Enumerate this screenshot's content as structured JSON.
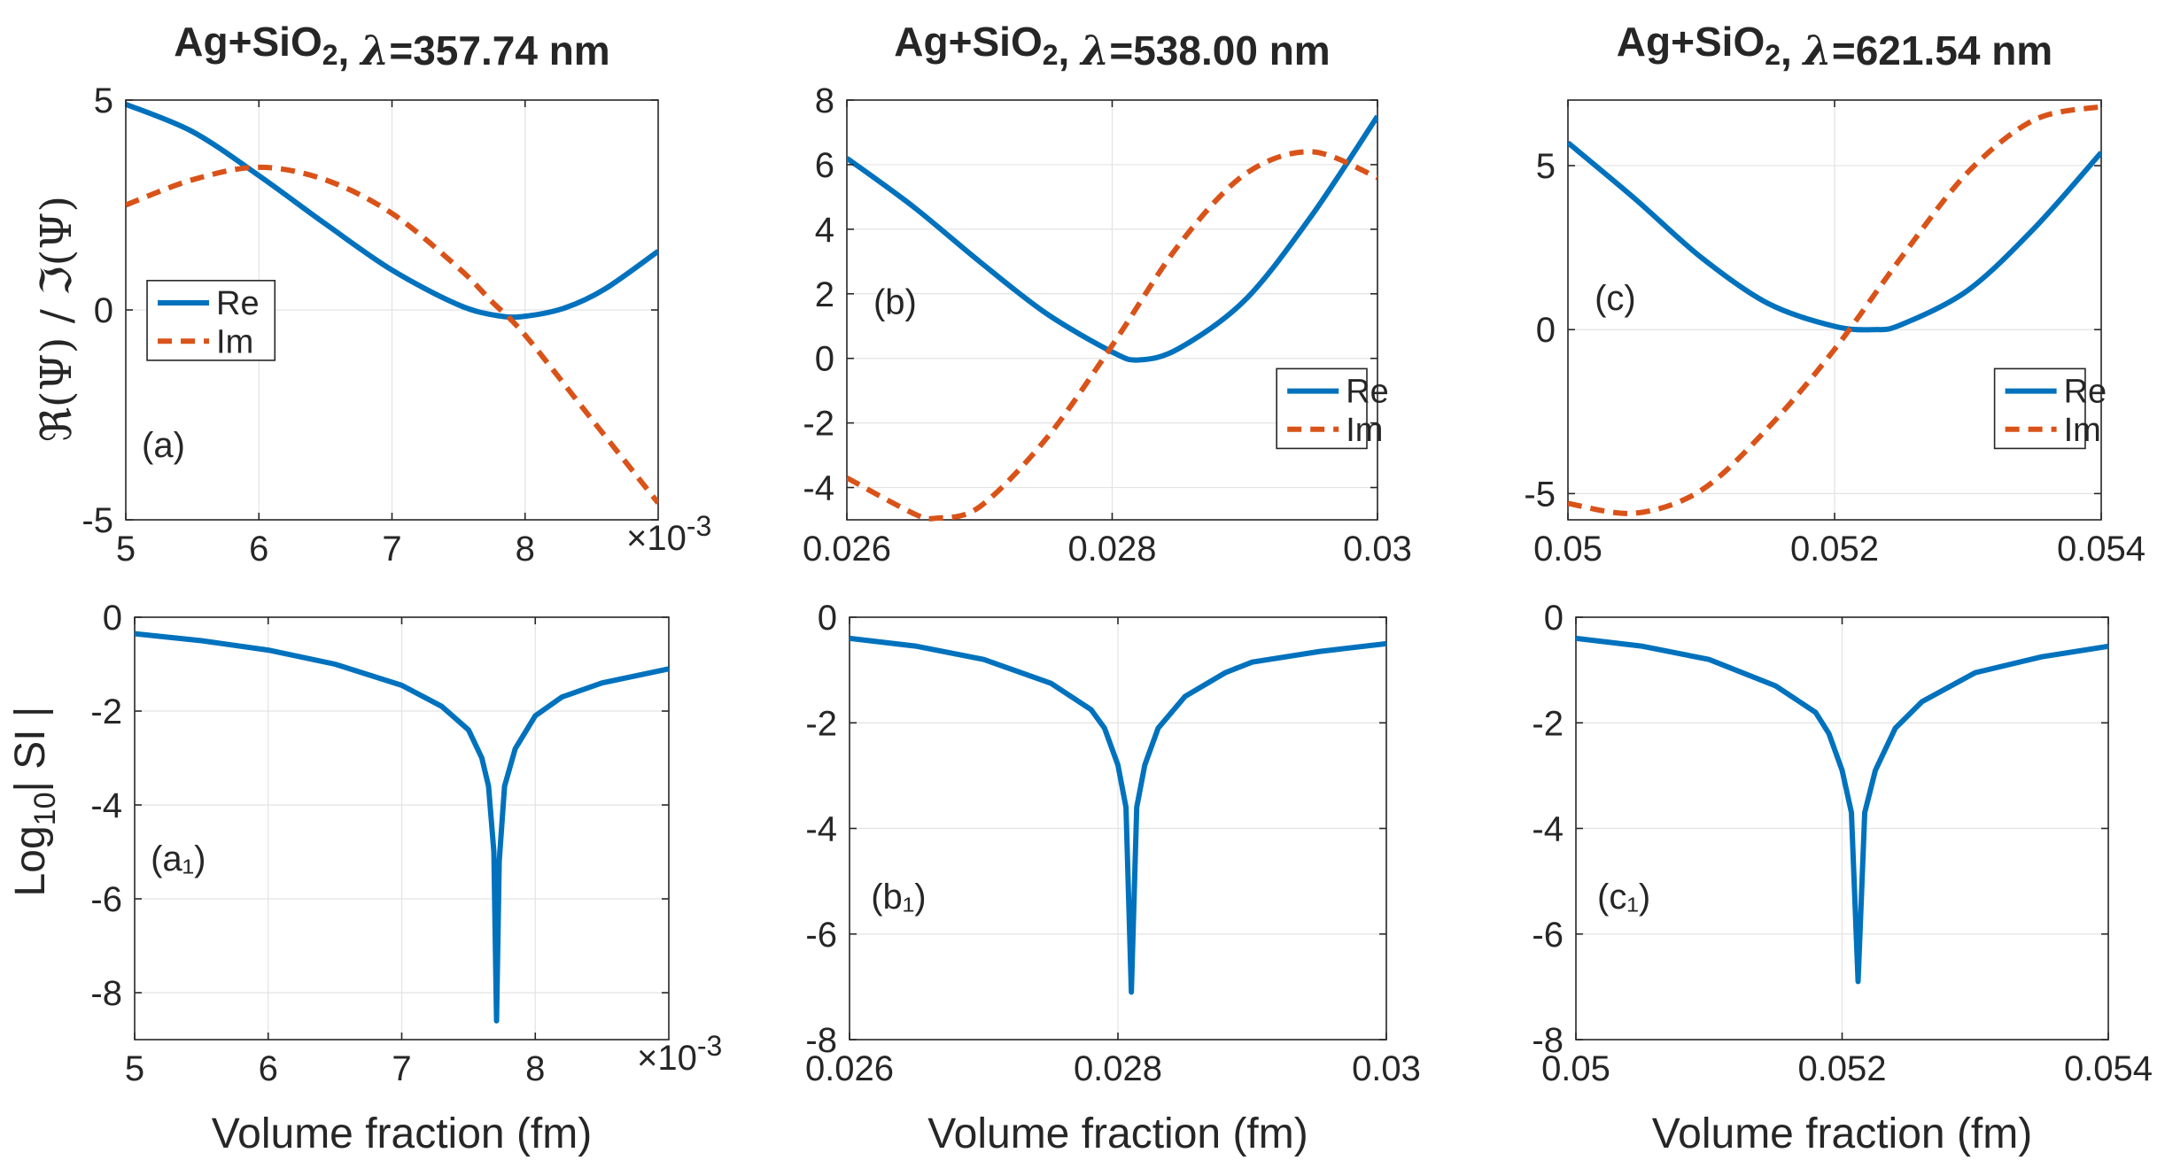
{
  "figure": {
    "ylabel_top": "ℜ(Ψ) / ℑ(Ψ)",
    "ylabel_bottom": "Log10| SI |"
  },
  "chart_data": [
    {
      "id": "a",
      "type": "line",
      "title": "Ag+SiO2, λ=357.74 nm",
      "tag": "(a)",
      "xlabel": "",
      "x_exponent": "×10-3",
      "xlim": [
        5,
        9
      ],
      "ylim": [
        -5,
        5
      ],
      "xticks": [
        5,
        6,
        7,
        8
      ],
      "xtick_labels": [
        "5",
        "6",
        "7",
        "8"
      ],
      "yticks": [
        -5,
        0,
        5
      ],
      "ytick_labels": [
        "-5",
        "0",
        "5"
      ],
      "grid": true,
      "legend": {
        "position": "middle-left",
        "entries": [
          "Re",
          "Im"
        ]
      },
      "colors": {
        "Re": "#0072BD",
        "Im": "#D95319"
      },
      "series": [
        {
          "name": "Re",
          "style": "solid",
          "x": [
            5.0,
            5.5,
            6.0,
            6.5,
            7.0,
            7.5,
            7.8,
            8.0,
            8.3,
            8.6,
            9.0
          ],
          "y": [
            4.9,
            4.25,
            3.2,
            2.05,
            0.95,
            0.12,
            -0.14,
            -0.15,
            0.05,
            0.5,
            1.4
          ]
        },
        {
          "name": "Im",
          "style": "dashed",
          "x": [
            5.0,
            5.5,
            6.0,
            6.5,
            7.0,
            7.5,
            7.75,
            8.0,
            8.5,
            9.0
          ],
          "y": [
            2.5,
            3.1,
            3.4,
            3.1,
            2.3,
            1.0,
            0.2,
            -0.6,
            -2.6,
            -4.6
          ]
        }
      ]
    },
    {
      "id": "b",
      "type": "line",
      "title": "Ag+SiO2, λ=538.00 nm",
      "tag": "(b)",
      "xlabel": "",
      "x_exponent": "",
      "xlim": [
        0.026,
        0.03
      ],
      "ylim": [
        -5,
        8
      ],
      "xticks": [
        0.026,
        0.028,
        0.03
      ],
      "xtick_labels": [
        "0.026",
        "0.028",
        "0.03"
      ],
      "yticks": [
        -4,
        -2,
        0,
        2,
        4,
        6,
        8
      ],
      "ytick_labels": [
        "-4",
        "-2",
        "0",
        "2",
        "4",
        "6",
        "8"
      ],
      "grid": true,
      "legend": {
        "position": "right",
        "entries": [
          "Re",
          "Im"
        ]
      },
      "colors": {
        "Re": "#0072BD",
        "Im": "#D95319"
      },
      "series": [
        {
          "name": "Re",
          "style": "solid",
          "x": [
            0.026,
            0.0265,
            0.027,
            0.0275,
            0.028,
            0.0282,
            0.0285,
            0.029,
            0.0295,
            0.03
          ],
          "y": [
            6.2,
            4.7,
            3.0,
            1.4,
            0.2,
            -0.05,
            0.3,
            1.8,
            4.4,
            7.5
          ]
        },
        {
          "name": "Im",
          "style": "dashed",
          "x": [
            0.026,
            0.0265,
            0.02667,
            0.027,
            0.0275,
            0.028,
            0.0285,
            0.029,
            0.0295,
            0.03
          ],
          "y": [
            -3.7,
            -4.8,
            -4.95,
            -4.6,
            -2.5,
            0.4,
            3.5,
            5.7,
            6.4,
            5.6
          ]
        }
      ]
    },
    {
      "id": "c",
      "type": "line",
      "title": "Ag+SiO2, λ=621.54 nm",
      "tag": "(c)",
      "xlabel": "",
      "x_exponent": "",
      "xlim": [
        0.05,
        0.054
      ],
      "ylim": [
        -5.8,
        7
      ],
      "xticks": [
        0.05,
        0.052,
        0.054
      ],
      "xtick_labels": [
        "0.05",
        "0.052",
        "0.054"
      ],
      "yticks": [
        -5,
        0,
        5
      ],
      "ytick_labels": [
        "-5",
        "0",
        "5"
      ],
      "grid": true,
      "legend": {
        "position": "right",
        "entries": [
          "Re",
          "Im"
        ]
      },
      "colors": {
        "Re": "#0072BD",
        "Im": "#D95319"
      },
      "series": [
        {
          "name": "Re",
          "style": "solid",
          "x": [
            0.05,
            0.0505,
            0.051,
            0.0515,
            0.052,
            0.0523,
            0.0525,
            0.053,
            0.0535,
            0.054
          ],
          "y": [
            5.7,
            4.0,
            2.2,
            0.8,
            0.1,
            0.0,
            0.15,
            1.2,
            3.1,
            5.4
          ]
        },
        {
          "name": "Im",
          "style": "dashed",
          "x": [
            0.05,
            0.0505,
            0.051,
            0.0515,
            0.052,
            0.0525,
            0.053,
            0.0535,
            0.054
          ],
          "y": [
            -5.3,
            -5.6,
            -4.9,
            -3.0,
            -0.6,
            2.2,
            4.8,
            6.4,
            6.8
          ]
        }
      ]
    },
    {
      "id": "a1",
      "type": "line",
      "title": "",
      "tag": "(a₁)",
      "xlabel": "Volume fraction (fm)",
      "x_exponent": "×10-3",
      "xlim": [
        5,
        9
      ],
      "ylim": [
        -9,
        0
      ],
      "xticks": [
        5,
        6,
        7,
        8
      ],
      "xtick_labels": [
        "5",
        "6",
        "7",
        "8"
      ],
      "yticks": [
        -8,
        -6,
        -4,
        -2,
        0
      ],
      "ytick_labels": [
        "-8",
        "-6",
        "-4",
        "-2",
        "0"
      ],
      "grid": true,
      "legend": null,
      "colors": {
        "SI": "#0072BD"
      },
      "series": [
        {
          "name": "SI",
          "style": "solid",
          "x": [
            5.0,
            5.5,
            6.0,
            6.5,
            7.0,
            7.3,
            7.5,
            7.6,
            7.65,
            7.69,
            7.71,
            7.73,
            7.77,
            7.85,
            8.0,
            8.2,
            8.5,
            9.0
          ],
          "y": [
            -0.35,
            -0.5,
            -0.7,
            -1.0,
            -1.45,
            -1.9,
            -2.4,
            -3.0,
            -3.6,
            -5.0,
            -8.6,
            -5.2,
            -3.6,
            -2.8,
            -2.1,
            -1.7,
            -1.4,
            -1.1
          ]
        }
      ]
    },
    {
      "id": "b1",
      "type": "line",
      "title": "",
      "tag": "(b₁)",
      "xlabel": "Volume fraction (fm)",
      "x_exponent": "",
      "xlim": [
        0.026,
        0.03
      ],
      "ylim": [
        -8,
        0
      ],
      "xticks": [
        0.026,
        0.028,
        0.03
      ],
      "xtick_labels": [
        "0.026",
        "0.028",
        "0.03"
      ],
      "yticks": [
        -8,
        -6,
        -4,
        -2,
        0
      ],
      "ytick_labels": [
        "-8",
        "-6",
        "-4",
        "-2",
        "0"
      ],
      "grid": true,
      "legend": null,
      "colors": {
        "SI": "#0072BD"
      },
      "series": [
        {
          "name": "SI",
          "style": "solid",
          "x": [
            0.026,
            0.0265,
            0.027,
            0.0275,
            0.0278,
            0.0279,
            0.028,
            0.02806,
            0.0281,
            0.02814,
            0.0282,
            0.0283,
            0.0285,
            0.0288,
            0.029,
            0.0295,
            0.03
          ],
          "y": [
            -0.4,
            -0.55,
            -0.8,
            -1.25,
            -1.75,
            -2.1,
            -2.8,
            -3.6,
            -7.1,
            -3.6,
            -2.8,
            -2.1,
            -1.5,
            -1.05,
            -0.85,
            -0.65,
            -0.5
          ]
        }
      ]
    },
    {
      "id": "c1",
      "type": "line",
      "title": "",
      "tag": "(c₁)",
      "xlabel": "Volume fraction (fm)",
      "x_exponent": "",
      "xlim": [
        0.05,
        0.054
      ],
      "ylim": [
        -8,
        0
      ],
      "xticks": [
        0.05,
        0.052,
        0.054
      ],
      "xtick_labels": [
        "0.05",
        "0.052",
        "0.054"
      ],
      "yticks": [
        -8,
        -6,
        -4,
        -2,
        0
      ],
      "ytick_labels": [
        "-8",
        "-6",
        "-4",
        "-2",
        "0"
      ],
      "grid": true,
      "legend": null,
      "colors": {
        "SI": "#0072BD"
      },
      "series": [
        {
          "name": "SI",
          "style": "solid",
          "x": [
            0.05,
            0.0505,
            0.051,
            0.0515,
            0.0518,
            0.0519,
            0.052,
            0.05207,
            0.05212,
            0.05217,
            0.05225,
            0.0524,
            0.0526,
            0.053,
            0.0535,
            0.054
          ],
          "y": [
            -0.4,
            -0.55,
            -0.8,
            -1.3,
            -1.8,
            -2.2,
            -2.9,
            -3.7,
            -6.9,
            -3.7,
            -2.9,
            -2.1,
            -1.6,
            -1.05,
            -0.75,
            -0.55
          ]
        }
      ]
    }
  ]
}
